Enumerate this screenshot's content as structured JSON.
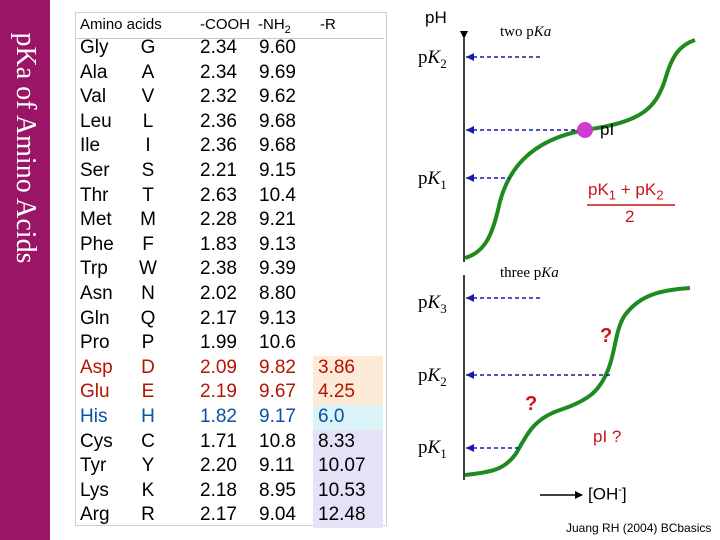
{
  "sidebar": {
    "title": "pKa of Amino Acids"
  },
  "table": {
    "headers": {
      "name": "Amino acids",
      "cooh": "-COOH",
      "nh2_prefix": "-NH",
      "nh2_sub": "2",
      "r": "-R"
    },
    "rows": [
      {
        "name": "Gly",
        "code": "G",
        "cooh": "2.34",
        "nh2": "9.60",
        "r": ""
      },
      {
        "name": "Ala",
        "code": "A",
        "cooh": "2.34",
        "nh2": "9.69",
        "r": ""
      },
      {
        "name": "Val",
        "code": "V",
        "cooh": "2.32",
        "nh2": "9.62",
        "r": ""
      },
      {
        "name": "Leu",
        "code": "L",
        "cooh": "2.36",
        "nh2": "9.68",
        "r": ""
      },
      {
        "name": "Ile",
        "code": "I",
        "cooh": "2.36",
        "nh2": "9.68",
        "r": ""
      },
      {
        "name": "Ser",
        "code": "S",
        "cooh": "2.21",
        "nh2": "9.15",
        "r": ""
      },
      {
        "name": "Thr",
        "code": "T",
        "cooh": "2.63",
        "nh2": "10.4",
        "r": ""
      },
      {
        "name": "Met",
        "code": "M",
        "cooh": "2.28",
        "nh2": "9.21",
        "r": ""
      },
      {
        "name": "Phe",
        "code": "F",
        "cooh": "1.83",
        "nh2": "9.13",
        "r": ""
      },
      {
        "name": "Trp",
        "code": "W",
        "cooh": "2.38",
        "nh2": "9.39",
        "r": ""
      },
      {
        "name": "Asn",
        "code": "N",
        "cooh": "2.02",
        "nh2": "8.80",
        "r": ""
      },
      {
        "name": "Gln",
        "code": "Q",
        "cooh": "2.17",
        "nh2": "9.13",
        "r": ""
      },
      {
        "name": "Pro",
        "code": "P",
        "cooh": "1.99",
        "nh2": "10.6",
        "r": ""
      },
      {
        "name": "Asp",
        "code": "D",
        "cooh": "2.09",
        "nh2": "9.82",
        "r": "3.86"
      },
      {
        "name": "Glu",
        "code": "E",
        "cooh": "2.19",
        "nh2": "9.67",
        "r": "4.25"
      },
      {
        "name": "His",
        "code": "H",
        "cooh": "1.82",
        "nh2": "9.17",
        "r": "6.0"
      },
      {
        "name": "Cys",
        "code": "C",
        "cooh": "1.71",
        "nh2": "10.8",
        "r": "8.33"
      },
      {
        "name": "Tyr",
        "code": "Y",
        "cooh": "2.20",
        "nh2": "9.11",
        "r": "10.07"
      },
      {
        "name": "Lys",
        "code": "K",
        "cooh": "2.18",
        "nh2": "8.95",
        "r": "10.53"
      },
      {
        "name": "Arg",
        "code": "R",
        "cooh": "2.17",
        "nh2": "9.04",
        "r": "12.48"
      }
    ]
  },
  "diagram": {
    "axis_label": "pH",
    "top": {
      "caption_text": "two p",
      "caption_italic": "Ka",
      "pk2": "K",
      "pk2_sub": "2",
      "pk1": "K",
      "pk1_sub": "1",
      "pi": "pI",
      "pi_formula_num_a": "pK",
      "pi_formula_num_a_sub": "1",
      "pi_formula_plus": " + pK",
      "pi_formula_num_b_sub": "2",
      "pi_formula_den": "2"
    },
    "bottom": {
      "caption_text": "three p",
      "caption_italic": "Ka",
      "pk3": "K",
      "pk3_sub": "3",
      "pk2": "K",
      "pk2_sub": "2",
      "pk1": "K",
      "pk1_sub": "1",
      "q1": "?",
      "q2": "?",
      "pi_q": "pI ?",
      "oh_text": "[OH",
      "oh_sup": "-",
      "oh_close": "]"
    },
    "p_prefix": "p"
  },
  "credit": "Juang RH (2004) BCbasics",
  "colors": {
    "sidebar": "#9b1566",
    "curve": "#1f8a1f",
    "arrow": "#1a1aa8",
    "pi_dot": "#d13ad1",
    "accent_red": "#c8141e",
    "acid_red": "#b41400",
    "his_blue": "#0c4fa6"
  }
}
